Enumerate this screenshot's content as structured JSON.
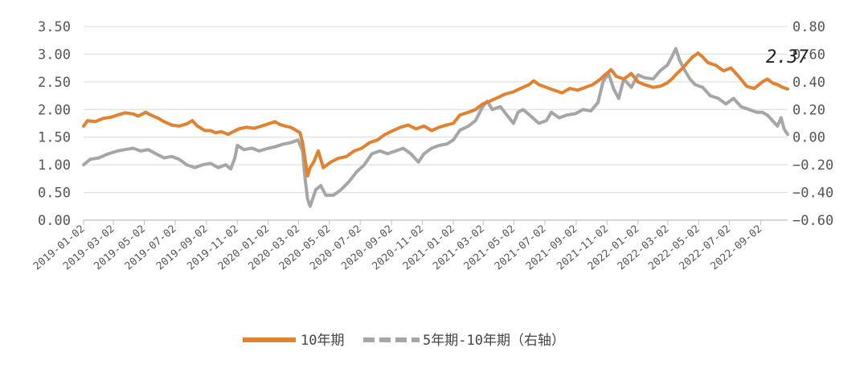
{
  "chart_data": {
    "type": "line",
    "title": "",
    "left_axis": {
      "ylim": [
        0,
        3.5
      ],
      "ticks": [
        "0.00",
        "0.50",
        "1.00",
        "1.50",
        "2.00",
        "2.50",
        "3.00",
        "3.50"
      ]
    },
    "right_axis": {
      "ylim": [
        -0.6,
        0.8
      ],
      "ticks": [
        "-0.60",
        "-0.40",
        "-0.20",
        "0.00",
        "0.20",
        "0.40",
        "0.60",
        "0.80"
      ]
    },
    "x_ticks": [
      "2019-01-02",
      "2019-03-02",
      "2019-05-02",
      "2019-07-02",
      "2019-09-02",
      "2019-11-02",
      "2020-01-02",
      "2020-03-02",
      "2020-05-02",
      "2020-07-02",
      "2020-09-02",
      "2020-11-02",
      "2021-01-02",
      "2021-03-02",
      "2021-05-02",
      "2021-07-02",
      "2021-09-02",
      "2021-11-02",
      "2022-01-02",
      "2022-03-02",
      "2022-05-02",
      "2022-07-02",
      "2022-09-02"
    ],
    "grid": true,
    "legend_position": "bottom",
    "annotation": {
      "text": "2.37"
    },
    "colors": {
      "series1": "#E0822F",
      "series2": "#A6A6A6",
      "grid": "#DADADA",
      "axis": "#BFBFBF"
    },
    "series": [
      {
        "name": "10年期",
        "axis": "left",
        "style": "solid",
        "points": [
          [
            "2019-01-02",
            1.7
          ],
          [
            "2019-01-10",
            1.8
          ],
          [
            "2019-01-25",
            1.78
          ],
          [
            "2019-02-10",
            1.84
          ],
          [
            "2019-02-25",
            1.86
          ],
          [
            "2019-03-10",
            1.9
          ],
          [
            "2019-03-25",
            1.94
          ],
          [
            "2019-04-10",
            1.92
          ],
          [
            "2019-04-20",
            1.88
          ],
          [
            "2019-05-05",
            1.95
          ],
          [
            "2019-05-15",
            1.9
          ],
          [
            "2019-05-30",
            1.84
          ],
          [
            "2019-06-10",
            1.78
          ],
          [
            "2019-06-25",
            1.72
          ],
          [
            "2019-07-10",
            1.7
          ],
          [
            "2019-07-25",
            1.74
          ],
          [
            "2019-08-05",
            1.8
          ],
          [
            "2019-08-15",
            1.7
          ],
          [
            "2019-08-30",
            1.62
          ],
          [
            "2019-09-10",
            1.62
          ],
          [
            "2019-09-20",
            1.58
          ],
          [
            "2019-10-01",
            1.6
          ],
          [
            "2019-10-15",
            1.55
          ],
          [
            "2019-10-25",
            1.6
          ],
          [
            "2019-11-05",
            1.65
          ],
          [
            "2019-11-20",
            1.68
          ],
          [
            "2019-12-05",
            1.66
          ],
          [
            "2019-12-20",
            1.7
          ],
          [
            "2020-01-02",
            1.74
          ],
          [
            "2020-01-15",
            1.78
          ],
          [
            "2020-01-25",
            1.73
          ],
          [
            "2020-02-05",
            1.7
          ],
          [
            "2020-02-15",
            1.68
          ],
          [
            "2020-02-25",
            1.63
          ],
          [
            "2020-03-05",
            1.58
          ],
          [
            "2020-03-10",
            1.4
          ],
          [
            "2020-03-15",
            1.1
          ],
          [
            "2020-03-20",
            0.8
          ],
          [
            "2020-03-25",
            0.95
          ],
          [
            "2020-04-01",
            1.05
          ],
          [
            "2020-04-10",
            1.25
          ],
          [
            "2020-04-15",
            1.1
          ],
          [
            "2020-04-20",
            0.95
          ],
          [
            "2020-05-05",
            1.05
          ],
          [
            "2020-05-20",
            1.12
          ],
          [
            "2020-06-05",
            1.15
          ],
          [
            "2020-06-20",
            1.25
          ],
          [
            "2020-07-05",
            1.3
          ],
          [
            "2020-07-20",
            1.4
          ],
          [
            "2020-08-05",
            1.45
          ],
          [
            "2020-08-20",
            1.55
          ],
          [
            "2020-09-05",
            1.62
          ],
          [
            "2020-09-20",
            1.68
          ],
          [
            "2020-10-05",
            1.72
          ],
          [
            "2020-10-20",
            1.65
          ],
          [
            "2020-11-05",
            1.7
          ],
          [
            "2020-11-20",
            1.62
          ],
          [
            "2020-12-05",
            1.68
          ],
          [
            "2020-12-20",
            1.72
          ],
          [
            "2021-01-02",
            1.75
          ],
          [
            "2021-01-15",
            1.9
          ],
          [
            "2021-02-01",
            1.95
          ],
          [
            "2021-02-15",
            2.0
          ],
          [
            "2021-03-01",
            2.1
          ],
          [
            "2021-03-15",
            2.15
          ],
          [
            "2021-04-01",
            2.22
          ],
          [
            "2021-04-15",
            2.28
          ],
          [
            "2021-05-01",
            2.32
          ],
          [
            "2021-05-15",
            2.38
          ],
          [
            "2021-06-01",
            2.45
          ],
          [
            "2021-06-10",
            2.52
          ],
          [
            "2021-06-20",
            2.45
          ],
          [
            "2021-07-05",
            2.4
          ],
          [
            "2021-07-20",
            2.35
          ],
          [
            "2021-08-05",
            2.3
          ],
          [
            "2021-08-20",
            2.38
          ],
          [
            "2021-09-05",
            2.35
          ],
          [
            "2021-09-20",
            2.4
          ],
          [
            "2021-10-05",
            2.45
          ],
          [
            "2021-10-20",
            2.55
          ],
          [
            "2021-11-01",
            2.65
          ],
          [
            "2021-11-10",
            2.72
          ],
          [
            "2021-11-20",
            2.6
          ],
          [
            "2021-12-05",
            2.55
          ],
          [
            "2021-12-20",
            2.65
          ],
          [
            "2022-01-02",
            2.5
          ],
          [
            "2022-01-15",
            2.45
          ],
          [
            "2022-02-01",
            2.4
          ],
          [
            "2022-02-15",
            2.42
          ],
          [
            "2022-03-01",
            2.48
          ],
          [
            "2022-03-10",
            2.55
          ],
          [
            "2022-03-20",
            2.65
          ],
          [
            "2022-04-01",
            2.75
          ],
          [
            "2022-04-10",
            2.85
          ],
          [
            "2022-04-20",
            2.95
          ],
          [
            "2022-05-01",
            3.02
          ],
          [
            "2022-05-10",
            2.95
          ],
          [
            "2022-05-20",
            2.85
          ],
          [
            "2022-06-05",
            2.8
          ],
          [
            "2022-06-20",
            2.7
          ],
          [
            "2022-07-05",
            2.75
          ],
          [
            "2022-07-20",
            2.6
          ],
          [
            "2022-08-05",
            2.42
          ],
          [
            "2022-08-20",
            2.38
          ],
          [
            "2022-09-05",
            2.5
          ],
          [
            "2022-09-15",
            2.55
          ],
          [
            "2022-09-25",
            2.48
          ],
          [
            "2022-10-05",
            2.45
          ],
          [
            "2022-10-15",
            2.4
          ],
          [
            "2022-10-25",
            2.37
          ]
        ]
      },
      {
        "name": "5年期-10年期（右轴）",
        "axis": "right",
        "style": "dashed",
        "points": [
          [
            "2019-01-02",
            -0.2
          ],
          [
            "2019-01-15",
            -0.16
          ],
          [
            "2019-02-01",
            -0.15
          ],
          [
            "2019-02-20",
            -0.12
          ],
          [
            "2019-03-10",
            -0.1
          ],
          [
            "2019-03-25",
            -0.09
          ],
          [
            "2019-04-10",
            -0.08
          ],
          [
            "2019-04-25",
            -0.1
          ],
          [
            "2019-05-10",
            -0.09
          ],
          [
            "2019-05-25",
            -0.12
          ],
          [
            "2019-06-10",
            -0.15
          ],
          [
            "2019-06-25",
            -0.14
          ],
          [
            "2019-07-10",
            -0.16
          ],
          [
            "2019-07-25",
            -0.2
          ],
          [
            "2019-08-10",
            -0.22
          ],
          [
            "2019-08-25",
            -0.2
          ],
          [
            "2019-09-10",
            -0.19
          ],
          [
            "2019-09-25",
            -0.22
          ],
          [
            "2019-10-10",
            -0.2
          ],
          [
            "2019-10-20",
            -0.23
          ],
          [
            "2019-10-28",
            -0.15
          ],
          [
            "2019-11-02",
            -0.06
          ],
          [
            "2019-11-15",
            -0.09
          ],
          [
            "2019-12-01",
            -0.08
          ],
          [
            "2019-12-15",
            -0.1
          ],
          [
            "2020-01-02",
            -0.08
          ],
          [
            "2020-01-15",
            -0.07
          ],
          [
            "2020-02-01",
            -0.05
          ],
          [
            "2020-02-15",
            -0.04
          ],
          [
            "2020-03-01",
            -0.02
          ],
          [
            "2020-03-10",
            -0.1
          ],
          [
            "2020-03-15",
            -0.3
          ],
          [
            "2020-03-20",
            -0.45
          ],
          [
            "2020-03-25",
            -0.5
          ],
          [
            "2020-04-05",
            -0.38
          ],
          [
            "2020-04-15",
            -0.35
          ],
          [
            "2020-04-25",
            -0.42
          ],
          [
            "2020-05-10",
            -0.42
          ],
          [
            "2020-05-25",
            -0.38
          ],
          [
            "2020-06-10",
            -0.32
          ],
          [
            "2020-06-25",
            -0.25
          ],
          [
            "2020-07-10",
            -0.2
          ],
          [
            "2020-07-25",
            -0.12
          ],
          [
            "2020-08-10",
            -0.1
          ],
          [
            "2020-08-25",
            -0.12
          ],
          [
            "2020-09-10",
            -0.1
          ],
          [
            "2020-09-25",
            -0.08
          ],
          [
            "2020-10-10",
            -0.12
          ],
          [
            "2020-10-25",
            -0.18
          ],
          [
            "2020-11-05",
            -0.12
          ],
          [
            "2020-11-20",
            -0.08
          ],
          [
            "2020-12-05",
            -0.06
          ],
          [
            "2020-12-20",
            -0.05
          ],
          [
            "2021-01-02",
            -0.02
          ],
          [
            "2021-01-15",
            0.05
          ],
          [
            "2021-02-01",
            0.08
          ],
          [
            "2021-02-15",
            0.12
          ],
          [
            "2021-03-01",
            0.22
          ],
          [
            "2021-03-10",
            0.26
          ],
          [
            "2021-03-20",
            0.2
          ],
          [
            "2021-04-05",
            0.22
          ],
          [
            "2021-04-20",
            0.15
          ],
          [
            "2021-05-01",
            0.1
          ],
          [
            "2021-05-10",
            0.18
          ],
          [
            "2021-05-20",
            0.2
          ],
          [
            "2021-06-05",
            0.15
          ],
          [
            "2021-06-20",
            0.1
          ],
          [
            "2021-07-05",
            0.12
          ],
          [
            "2021-07-15",
            0.18
          ],
          [
            "2021-07-30",
            0.14
          ],
          [
            "2021-08-15",
            0.16
          ],
          [
            "2021-09-01",
            0.17
          ],
          [
            "2021-09-15",
            0.2
          ],
          [
            "2021-10-01",
            0.19
          ],
          [
            "2021-10-15",
            0.25
          ],
          [
            "2021-10-25",
            0.4
          ],
          [
            "2021-11-05",
            0.46
          ],
          [
            "2021-11-15",
            0.35
          ],
          [
            "2021-11-25",
            0.28
          ],
          [
            "2021-12-05",
            0.42
          ],
          [
            "2021-12-20",
            0.36
          ],
          [
            "2022-01-02",
            0.45
          ],
          [
            "2022-01-15",
            0.43
          ],
          [
            "2022-02-01",
            0.42
          ],
          [
            "2022-02-15",
            0.48
          ],
          [
            "2022-03-01",
            0.52
          ],
          [
            "2022-03-10",
            0.58
          ],
          [
            "2022-03-18",
            0.64
          ],
          [
            "2022-03-25",
            0.56
          ],
          [
            "2022-04-05",
            0.48
          ],
          [
            "2022-04-15",
            0.42
          ],
          [
            "2022-04-25",
            0.38
          ],
          [
            "2022-05-10",
            0.36
          ],
          [
            "2022-05-25",
            0.3
          ],
          [
            "2022-06-10",
            0.28
          ],
          [
            "2022-06-25",
            0.24
          ],
          [
            "2022-07-10",
            0.28
          ],
          [
            "2022-07-25",
            0.22
          ],
          [
            "2022-08-10",
            0.2
          ],
          [
            "2022-08-25",
            0.18
          ],
          [
            "2022-09-05",
            0.18
          ],
          [
            "2022-09-15",
            0.16
          ],
          [
            "2022-09-25",
            0.12
          ],
          [
            "2022-10-05",
            0.08
          ],
          [
            "2022-10-12",
            0.14
          ],
          [
            "2022-10-18",
            0.06
          ],
          [
            "2022-10-25",
            0.02
          ]
        ]
      }
    ]
  }
}
